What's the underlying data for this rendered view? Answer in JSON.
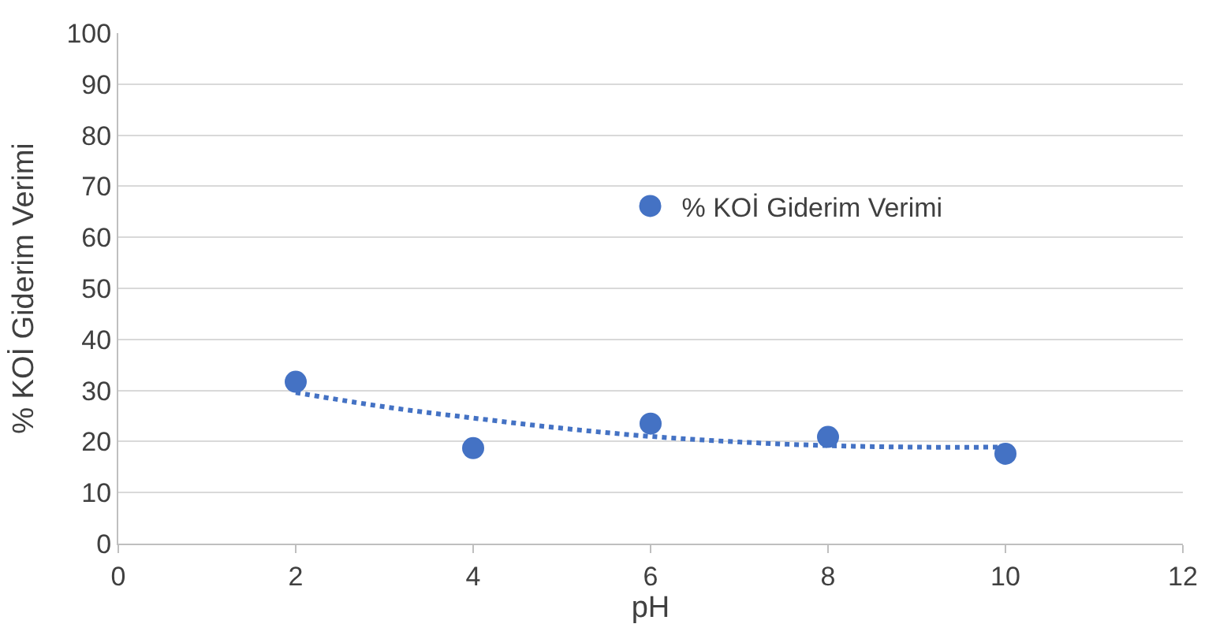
{
  "chart_data": {
    "type": "scatter",
    "xlabel": "pH",
    "ylabel": "% KOİ Giderim Verimi",
    "series": [
      {
        "name": "% KOİ Giderim Verimi",
        "color": "#4472c4",
        "x": [
          2,
          4,
          6,
          8,
          10
        ],
        "values": [
          31.7,
          18.7,
          23.5,
          20.9,
          17.6
        ]
      },
      {
        "type": "line",
        "color": "#4472c4",
        "line_style": "dotted",
        "marker": "none",
        "x": [
          2,
          3,
          4,
          5,
          6,
          7,
          8,
          9,
          10
        ],
        "values": [
          29.6,
          26.8,
          24.6,
          22.6,
          21,
          19.9,
          19.2,
          18.9,
          18.9
        ]
      }
    ],
    "xlim": [
      0,
      12
    ],
    "xticks": [
      0,
      2,
      4,
      6,
      8,
      10,
      12
    ],
    "ylim": [
      0,
      100
    ],
    "yticks": [
      0,
      10,
      20,
      30,
      40,
      50,
      60,
      70,
      80,
      90,
      100
    ],
    "grid": "y",
    "legend": "top right",
    "marker": "circle"
  }
}
